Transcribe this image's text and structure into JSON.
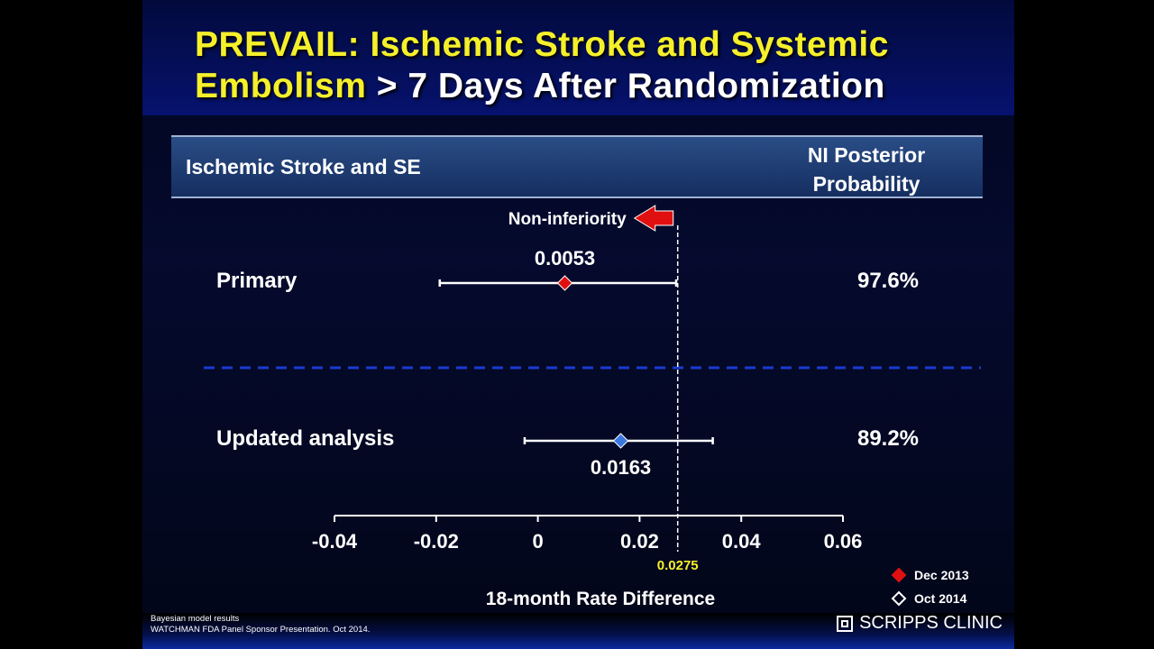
{
  "title": {
    "line1_yellow": "PREVAIL: Ischemic Stroke and Systemic",
    "line2_yellow": "Embolism",
    "line2_white": " > 7 Days After Randomization"
  },
  "header": {
    "left_label": "Ischemic Stroke and SE",
    "right_label_line1": "NI Posterior",
    "right_label_line2": "Probability"
  },
  "chart_data": {
    "type": "scatter",
    "xlabel": "18-month Rate Difference",
    "xlim": [
      -0.04,
      0.06
    ],
    "xticks": [
      -0.04,
      -0.02,
      0,
      0.02,
      0.04,
      0.06
    ],
    "xtick_labels": [
      "-0.04",
      "-0.02",
      "0",
      "0.02",
      "0.04",
      "0.06"
    ],
    "margin": {
      "value": 0.0275,
      "label": "0.0275",
      "annotation": "Non-inferiority"
    },
    "rows": [
      {
        "label": "Primary",
        "estimate": 0.0053,
        "estimate_label": "0.0053",
        "ci": [
          -0.0193,
          0.0272
        ],
        "probability": "97.6%",
        "series": "Dec 2013"
      },
      {
        "label": "Updated analysis",
        "estimate": 0.0163,
        "estimate_label": "0.0163",
        "ci": [
          -0.0026,
          0.0344
        ],
        "probability": "89.2%",
        "series": "Oct 2014"
      }
    ],
    "legend": [
      {
        "name": "Dec 2013",
        "marker": "filled-diamond",
        "color": "#e01010"
      },
      {
        "name": "Oct 2014",
        "marker": "open-diamond",
        "color": "#ffffff"
      }
    ],
    "legend_position": "bottom-right",
    "colors": {
      "primary_marker": "#e01010",
      "updated_marker": "#3a78e0",
      "divider": "#1a3ad0",
      "margin_label": "#f5f02a",
      "arrow": "#e01010"
    }
  },
  "footer": {
    "source_line1": "Bayesian model results",
    "source_line2": "WATCHMAN FDA Panel Sponsor Presentation. Oct 2014.",
    "brand": "SCRIPPS CLINIC",
    "brand_icon": "scripps-logo-icon"
  }
}
